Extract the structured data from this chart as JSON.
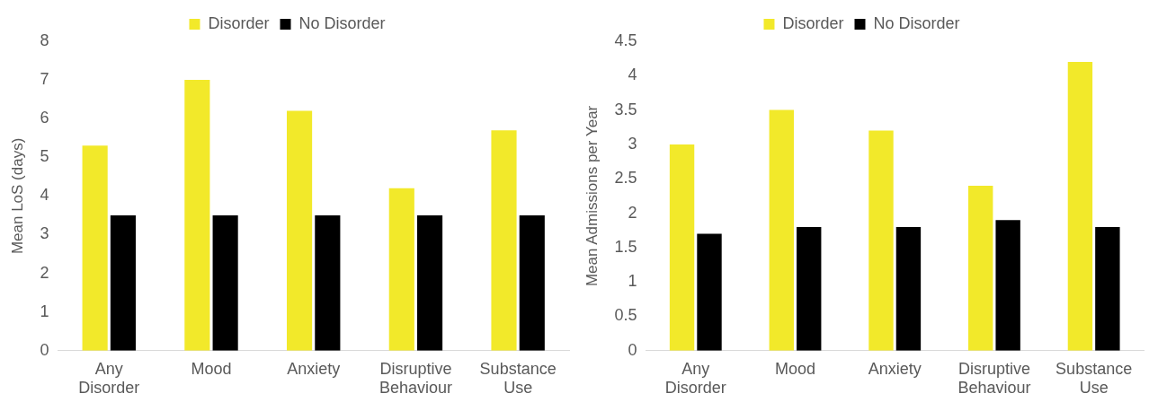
{
  "chart_data": [
    {
      "type": "bar",
      "ylabel": "Mean LoS (days)",
      "categories": [
        "Any Disorder",
        "Mood",
        "Anxiety",
        "Disruptive Behaviour",
        "Substance Use"
      ],
      "series": [
        {
          "name": "Disorder",
          "color": "#f2e92a",
          "values": [
            5.3,
            7.0,
            6.2,
            4.2,
            5.7
          ]
        },
        {
          "name": "No Disorder",
          "color": "#000000",
          "values": [
            3.5,
            3.5,
            3.5,
            3.5,
            3.5
          ]
        }
      ],
      "ylim": [
        0,
        8
      ],
      "yticks": [
        0,
        1,
        2,
        3,
        4,
        5,
        6,
        7,
        8
      ],
      "grid": false,
      "legend": "top"
    },
    {
      "type": "bar",
      "ylabel": "Mean Admissions per Year",
      "categories": [
        "Any Disorder",
        "Mood",
        "Anxiety",
        "Disruptive Behaviour",
        "Substance Use"
      ],
      "series": [
        {
          "name": "Disorder",
          "color": "#f2e92a",
          "values": [
            3.0,
            3.5,
            3.2,
            2.4,
            4.2
          ]
        },
        {
          "name": "No Disorder",
          "color": "#000000",
          "values": [
            1.7,
            1.8,
            1.8,
            1.9,
            1.8
          ]
        }
      ],
      "ylim": [
        0,
        4.5
      ],
      "yticks": [
        0,
        0.5,
        1,
        1.5,
        2,
        2.5,
        3,
        3.5,
        4,
        4.5
      ],
      "grid": false,
      "legend": "top"
    }
  ]
}
